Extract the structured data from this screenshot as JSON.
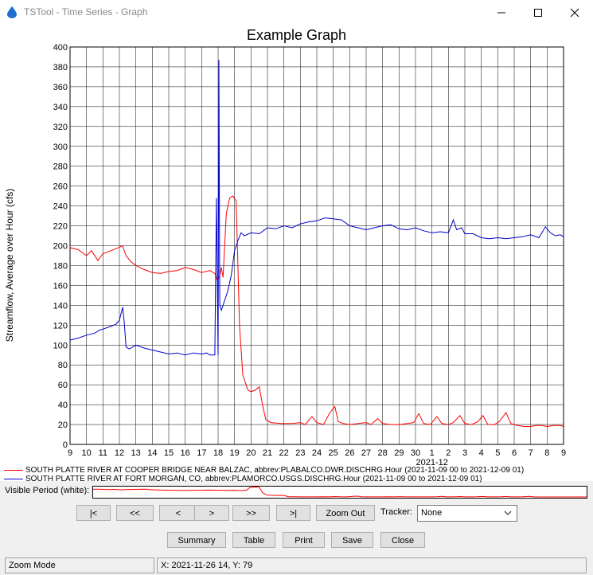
{
  "window": {
    "title": "TSTool - Time Series - Graph"
  },
  "graph": {
    "title": "Example Graph"
  },
  "chart_data": {
    "type": "line",
    "title": "Example Graph",
    "ylabel": "Streamflow, Average over Hour (cfs)",
    "ylim": [
      0,
      400
    ],
    "yticks": [
      0,
      20,
      40,
      60,
      80,
      100,
      120,
      140,
      160,
      180,
      200,
      220,
      240,
      260,
      280,
      300,
      320,
      340,
      360,
      380,
      400
    ],
    "x_day_ticks": [
      "9",
      "10",
      "11",
      "12",
      "13",
      "14",
      "15",
      "16",
      "17",
      "18",
      "19",
      "20",
      "21",
      "22",
      "23",
      "24",
      "25",
      "26",
      "27",
      "28",
      "29",
      "30",
      "1",
      "2",
      "3",
      "4",
      "5",
      "6",
      "7",
      "8",
      "9"
    ],
    "x_month_label": "2021-12",
    "x_start": "2021-11-09",
    "x_end": "2021-12-09",
    "grid": true,
    "series": [
      {
        "name": "SOUTH PLATTE RIVER AT COOPER BRIDGE NEAR BALZAC, abbrev:PLABALCO.DWR.DISCHRG.Hour (2021-11-09 00 to 2021-12-09 01)",
        "color": "#ff0000",
        "points": [
          [
            0,
            198
          ],
          [
            0.5,
            196
          ],
          [
            1,
            190
          ],
          [
            1.3,
            195
          ],
          [
            1.7,
            185
          ],
          [
            2,
            192
          ],
          [
            2.5,
            195
          ],
          [
            2.8,
            197
          ],
          [
            3.2,
            200
          ],
          [
            3.4,
            190
          ],
          [
            3.7,
            184
          ],
          [
            4,
            180
          ],
          [
            4.5,
            176
          ],
          [
            5,
            173
          ],
          [
            5.5,
            172
          ],
          [
            6,
            174
          ],
          [
            6.5,
            175
          ],
          [
            7,
            178
          ],
          [
            7.5,
            176
          ],
          [
            8,
            173
          ],
          [
            8.5,
            175
          ],
          [
            8.8,
            172
          ],
          [
            8.95,
            165
          ],
          [
            9.1,
            170
          ],
          [
            9.2,
            178
          ],
          [
            9.3,
            168
          ],
          [
            9.5,
            232
          ],
          [
            9.7,
            248
          ],
          [
            9.9,
            250
          ],
          [
            10.1,
            245
          ],
          [
            10.3,
            120
          ],
          [
            10.5,
            70
          ],
          [
            10.8,
            55
          ],
          [
            11,
            53
          ],
          [
            11.3,
            55
          ],
          [
            11.5,
            58
          ],
          [
            11.7,
            40
          ],
          [
            11.9,
            25
          ],
          [
            12.2,
            22
          ],
          [
            12.8,
            21
          ],
          [
            13.5,
            21
          ],
          [
            14,
            22
          ],
          [
            14.3,
            20
          ],
          [
            14.7,
            28
          ],
          [
            15,
            22
          ],
          [
            15.4,
            20
          ],
          [
            15.8,
            32
          ],
          [
            16.1,
            38
          ],
          [
            16.3,
            23
          ],
          [
            16.6,
            21
          ],
          [
            17,
            20
          ],
          [
            17.5,
            21
          ],
          [
            18,
            22
          ],
          [
            18.3,
            20
          ],
          [
            18.7,
            26
          ],
          [
            19.0,
            21
          ],
          [
            19.5,
            20
          ],
          [
            20,
            20
          ],
          [
            20.5,
            21
          ],
          [
            20.9,
            22
          ],
          [
            21.2,
            31
          ],
          [
            21.5,
            21
          ],
          [
            21.9,
            20
          ],
          [
            22.3,
            28
          ],
          [
            22.6,
            21
          ],
          [
            23,
            20
          ],
          [
            23.3,
            22
          ],
          [
            23.7,
            29
          ],
          [
            24,
            21
          ],
          [
            24.4,
            20
          ],
          [
            24.8,
            23
          ],
          [
            25.1,
            29
          ],
          [
            25.4,
            20
          ],
          [
            25.8,
            20
          ],
          [
            26.1,
            23
          ],
          [
            26.5,
            32
          ],
          [
            26.8,
            21
          ],
          [
            27.2,
            19
          ],
          [
            27.6,
            18
          ],
          [
            28,
            18
          ],
          [
            28.3,
            19
          ],
          [
            28.7,
            19
          ],
          [
            29,
            18
          ],
          [
            29.4,
            19
          ],
          [
            29.8,
            19
          ],
          [
            30,
            18
          ]
        ]
      },
      {
        "name": "SOUTH PLATTE RIVER AT FORT MORGAN, CO, abbrev:PLAMORCO.USGS.DISCHRG.Hour (2021-11-09 00 to 2021-12-09 01)",
        "color": "#0000cc",
        "points": [
          [
            0,
            105
          ],
          [
            0.5,
            107
          ],
          [
            1,
            110
          ],
          [
            1.5,
            112
          ],
          [
            1.8,
            115
          ],
          [
            2,
            116
          ],
          [
            2.5,
            119
          ],
          [
            2.8,
            121
          ],
          [
            3.0,
            125
          ],
          [
            3.2,
            138
          ],
          [
            3.3,
            122
          ],
          [
            3.4,
            98
          ],
          [
            3.6,
            96
          ],
          [
            4,
            100
          ],
          [
            4.5,
            97
          ],
          [
            5,
            95
          ],
          [
            5.5,
            93
          ],
          [
            6,
            91
          ],
          [
            6.5,
            92
          ],
          [
            7,
            90
          ],
          [
            7.5,
            92
          ],
          [
            8,
            91
          ],
          [
            8.3,
            92
          ],
          [
            8.5,
            90
          ],
          [
            8.8,
            90
          ],
          [
            8.9,
            248
          ],
          [
            9.0,
            90
          ],
          [
            9.05,
            387
          ],
          [
            9.1,
            140
          ],
          [
            9.2,
            135
          ],
          [
            9.4,
            145
          ],
          [
            9.6,
            155
          ],
          [
            9.8,
            170
          ],
          [
            10.0,
            195
          ],
          [
            10.2,
            205
          ],
          [
            10.4,
            213
          ],
          [
            10.6,
            210
          ],
          [
            11,
            213
          ],
          [
            11.5,
            212
          ],
          [
            12,
            218
          ],
          [
            12.5,
            217
          ],
          [
            13,
            220
          ],
          [
            13.5,
            218
          ],
          [
            14,
            222
          ],
          [
            14.5,
            224
          ],
          [
            15,
            225
          ],
          [
            15.5,
            228
          ],
          [
            16,
            227
          ],
          [
            16.5,
            226
          ],
          [
            17,
            220
          ],
          [
            17.5,
            218
          ],
          [
            18,
            216
          ],
          [
            18.5,
            218
          ],
          [
            19,
            220
          ],
          [
            19.5,
            221
          ],
          [
            20,
            217
          ],
          [
            20.5,
            216
          ],
          [
            21,
            218
          ],
          [
            21.5,
            215
          ],
          [
            22,
            213
          ],
          [
            22.5,
            214
          ],
          [
            23,
            213
          ],
          [
            23.3,
            226
          ],
          [
            23.5,
            216
          ],
          [
            23.8,
            218
          ],
          [
            24,
            212
          ],
          [
            24.5,
            212
          ],
          [
            25,
            208
          ],
          [
            25.5,
            207
          ],
          [
            26,
            208
          ],
          [
            26.5,
            207
          ],
          [
            27,
            208
          ],
          [
            27.5,
            209
          ],
          [
            28,
            211
          ],
          [
            28.5,
            208
          ],
          [
            28.9,
            219
          ],
          [
            29.2,
            213
          ],
          [
            29.5,
            210
          ],
          [
            29.8,
            211
          ],
          [
            30,
            209
          ]
        ]
      }
    ]
  },
  "visible_period": {
    "label": "Visible Period (white):"
  },
  "nav": {
    "first": "|<",
    "prev_page": "<<",
    "prev": "<",
    "next": ">",
    "next_page": ">>",
    "last": ">|",
    "zoom_out": "Zoom Out",
    "tracker_label": "Tracker:",
    "tracker_value": "None"
  },
  "actions": {
    "summary": "Summary",
    "table": "Table",
    "print": "Print",
    "save": "Save",
    "close": "Close"
  },
  "status": {
    "mode": "Zoom Mode",
    "coords": "X:  2021-11-26 14,  Y:  79"
  }
}
